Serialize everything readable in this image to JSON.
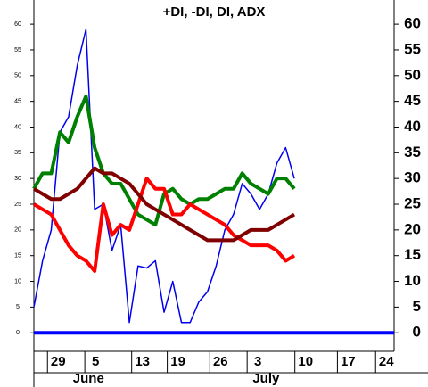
{
  "chart_data": {
    "type": "line",
    "title": "+DI, -DI, DI, ADX",
    "x": [
      0,
      1,
      2,
      3,
      4,
      5,
      6,
      7,
      8,
      9,
      10,
      11,
      12,
      13,
      14,
      15,
      16,
      17,
      18,
      19,
      20,
      21,
      22,
      23,
      24,
      25,
      26,
      27,
      28,
      29,
      30
    ],
    "series": [
      {
        "color": "#0000ee",
        "width": 1.5,
        "values": [
          5,
          14,
          20,
          39,
          42,
          52,
          59,
          24,
          25,
          16,
          21,
          2,
          13,
          12.6,
          14,
          4,
          10,
          2,
          2,
          6,
          8,
          13,
          20,
          23,
          29,
          27,
          24,
          27,
          33,
          36,
          30
        ]
      },
      {
        "color": "#008000",
        "width": 4,
        "values": [
          28,
          31,
          31,
          39,
          37,
          42,
          46,
          36,
          31,
          29,
          29,
          26,
          23,
          22,
          21,
          27,
          28,
          26,
          25,
          26,
          26,
          27,
          28,
          28,
          31,
          29,
          28,
          27,
          30,
          30,
          28
        ]
      },
      {
        "color": "#ff0000",
        "width": 4,
        "values": [
          25,
          24,
          23,
          20,
          17,
          15,
          14,
          12,
          25,
          19,
          21,
          20,
          25,
          30,
          28,
          28,
          23,
          23,
          25,
          24,
          23,
          22,
          21,
          19,
          18,
          17,
          17,
          17,
          16,
          14,
          15
        ]
      },
      {
        "color": "#800000",
        "width": 4,
        "values": [
          28,
          27,
          26,
          26,
          27,
          28,
          30,
          32,
          31,
          31,
          30,
          29,
          27,
          25,
          24,
          23,
          22,
          21,
          20,
          19,
          18,
          18,
          18,
          18,
          19,
          20,
          20,
          20,
          21,
          22,
          23
        ]
      }
    ],
    "reference_line": {
      "value": 0,
      "color": "#0000ff"
    },
    "xlim": [
      0,
      41.5
    ],
    "xticks": [
      {
        "value": 2.8,
        "label": "29"
      },
      {
        "value": 7.1,
        "label": "5"
      },
      {
        "value": 12.5,
        "label": "13"
      },
      {
        "value": 16.6,
        "label": "19"
      },
      {
        "value": 21.5,
        "label": "26"
      },
      {
        "value": 25.8,
        "label": "3"
      },
      {
        "value": 31.3,
        "label": "10"
      },
      {
        "value": 36.2,
        "label": "17"
      },
      {
        "value": 40.6,
        "label": "24"
      }
    ],
    "months": [
      {
        "value": 4.5,
        "label": "June"
      },
      {
        "value": 25.2,
        "label": "July"
      }
    ],
    "ylim": [
      -3.6,
      64.7
    ],
    "yticks": [
      0,
      5,
      10,
      15,
      20,
      25,
      30,
      35,
      40,
      45,
      50,
      55,
      60
    ]
  }
}
